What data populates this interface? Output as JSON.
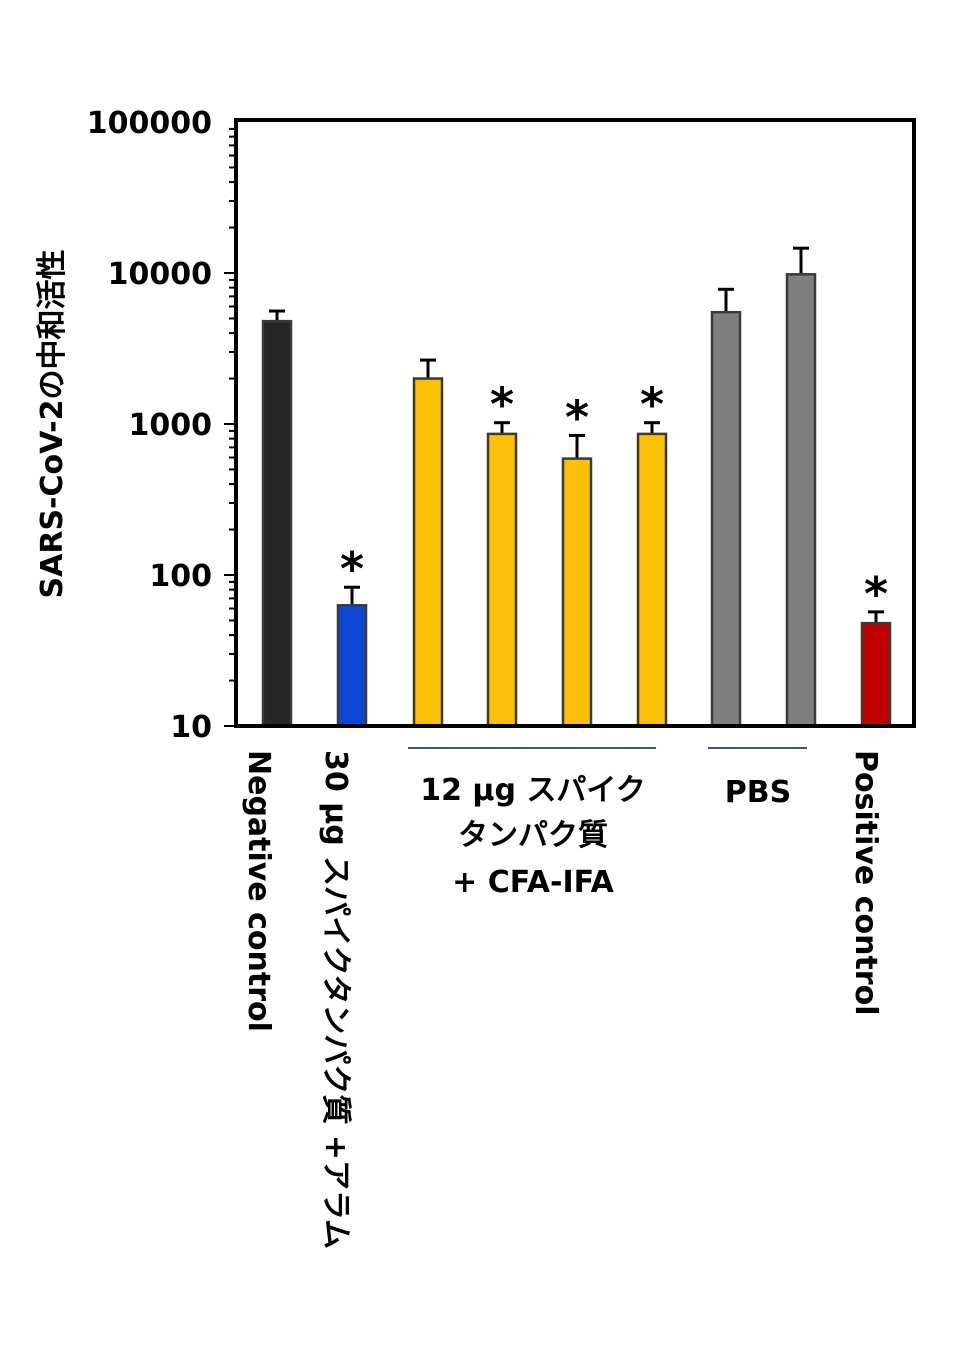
{
  "chart_data": {
    "type": "bar",
    "title": "",
    "ylabel": "SARS-CoV-2の中和活性",
    "xlabel": "",
    "yscale": "log",
    "ylim": [
      10,
      100000
    ],
    "yticks": [
      "10",
      "100",
      "1000",
      "10000",
      "100000"
    ],
    "grid": false,
    "legend": "none",
    "bars": [
      {
        "value": 4800,
        "error": 800,
        "color": "#262626",
        "significant": false
      },
      {
        "value": 63,
        "error": 20,
        "color": "#0b47d4",
        "significant": true
      },
      {
        "value": 2000,
        "error": 650,
        "color": "#fdc009",
        "significant": false
      },
      {
        "value": 860,
        "error": 160,
        "color": "#fdc009",
        "significant": true
      },
      {
        "value": 590,
        "error": 250,
        "color": "#fdc009",
        "significant": true
      },
      {
        "value": 860,
        "error": 160,
        "color": "#fdc009",
        "significant": true
      },
      {
        "value": 5500,
        "error": 2300,
        "color": "#7f7f7f",
        "significant": false
      },
      {
        "value": 9800,
        "error": 4800,
        "color": "#7f7f7f",
        "significant": false
      },
      {
        "value": 48,
        "error": 9,
        "color": "#c00000",
        "significant": true
      }
    ],
    "significance_marker": "*",
    "group_labels": {
      "negative": "Negative control",
      "alum": "30 µg スパイクタンパク質 +アラム",
      "cfa": [
        "12 µg スパイク",
        "タンパク質",
        "+ CFA-IFA"
      ],
      "pbs": "PBS",
      "positive": "Positive control"
    }
  }
}
